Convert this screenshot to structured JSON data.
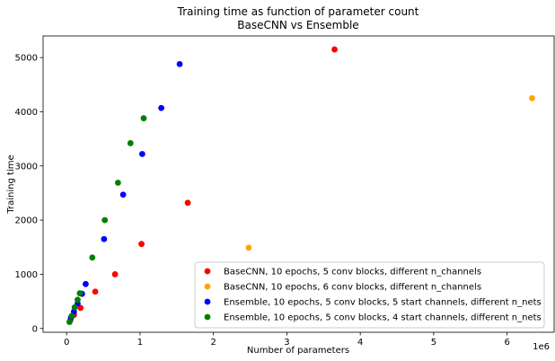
{
  "chart_data": {
    "type": "scatter",
    "title": "Training time as function of parameter count",
    "subtitle": "BaseCNN vs Ensemble",
    "xlabel": "Number of parameters",
    "ylabel": "Training time",
    "x_offset_text": "1e6",
    "xlim": [
      -320000,
      6640000
    ],
    "ylim": [
      -70,
      5400
    ],
    "xticks": [
      0,
      1000000,
      2000000,
      3000000,
      4000000,
      5000000,
      6000000
    ],
    "xtick_labels": [
      "0",
      "1",
      "2",
      "3",
      "4",
      "5",
      "6"
    ],
    "yticks": [
      0,
      1000,
      2000,
      3000,
      4000,
      5000
    ],
    "ytick_labels": [
      "0",
      "1000",
      "2000",
      "3000",
      "4000",
      "5000"
    ],
    "grid": false,
    "legend_position": "lower-right",
    "series": [
      {
        "name": "BaseCNN, 10 epochs, 5 conv blocks, different n_channels",
        "color": "#ff0000",
        "x": [
          50000,
          100000,
          190000,
          390000,
          660000,
          1020000,
          1650000,
          3650000
        ],
        "y": [
          150,
          250,
          380,
          680,
          1000,
          1560,
          2320,
          5150
        ]
      },
      {
        "name": "BaseCNN, 10 epochs, 6 conv blocks, different n_channels",
        "color": "#ffa500",
        "x": [
          2480000,
          6340000
        ],
        "y": [
          1490,
          4250
        ]
      },
      {
        "name": "Ensemble, 10 epochs, 5 conv blocks, 5 start channels, different n_nets",
        "color": "#0000ff",
        "x": [
          60000,
          100000,
          150000,
          210000,
          260000,
          510000,
          770000,
          1030000,
          1290000,
          1540000
        ],
        "y": [
          200,
          310,
          460,
          640,
          820,
          1650,
          2470,
          3220,
          4070,
          4880
        ]
      },
      {
        "name": "Ensemble, 10 epochs, 5 conv blocks, 4 start channels, different n_nets",
        "color": "#008000",
        "x": [
          40000,
          70000,
          110000,
          150000,
          180000,
          350000,
          520000,
          700000,
          870000,
          1050000
        ],
        "y": [
          120,
          230,
          390,
          530,
          650,
          1310,
          2000,
          2690,
          3420,
          3880
        ]
      }
    ]
  }
}
